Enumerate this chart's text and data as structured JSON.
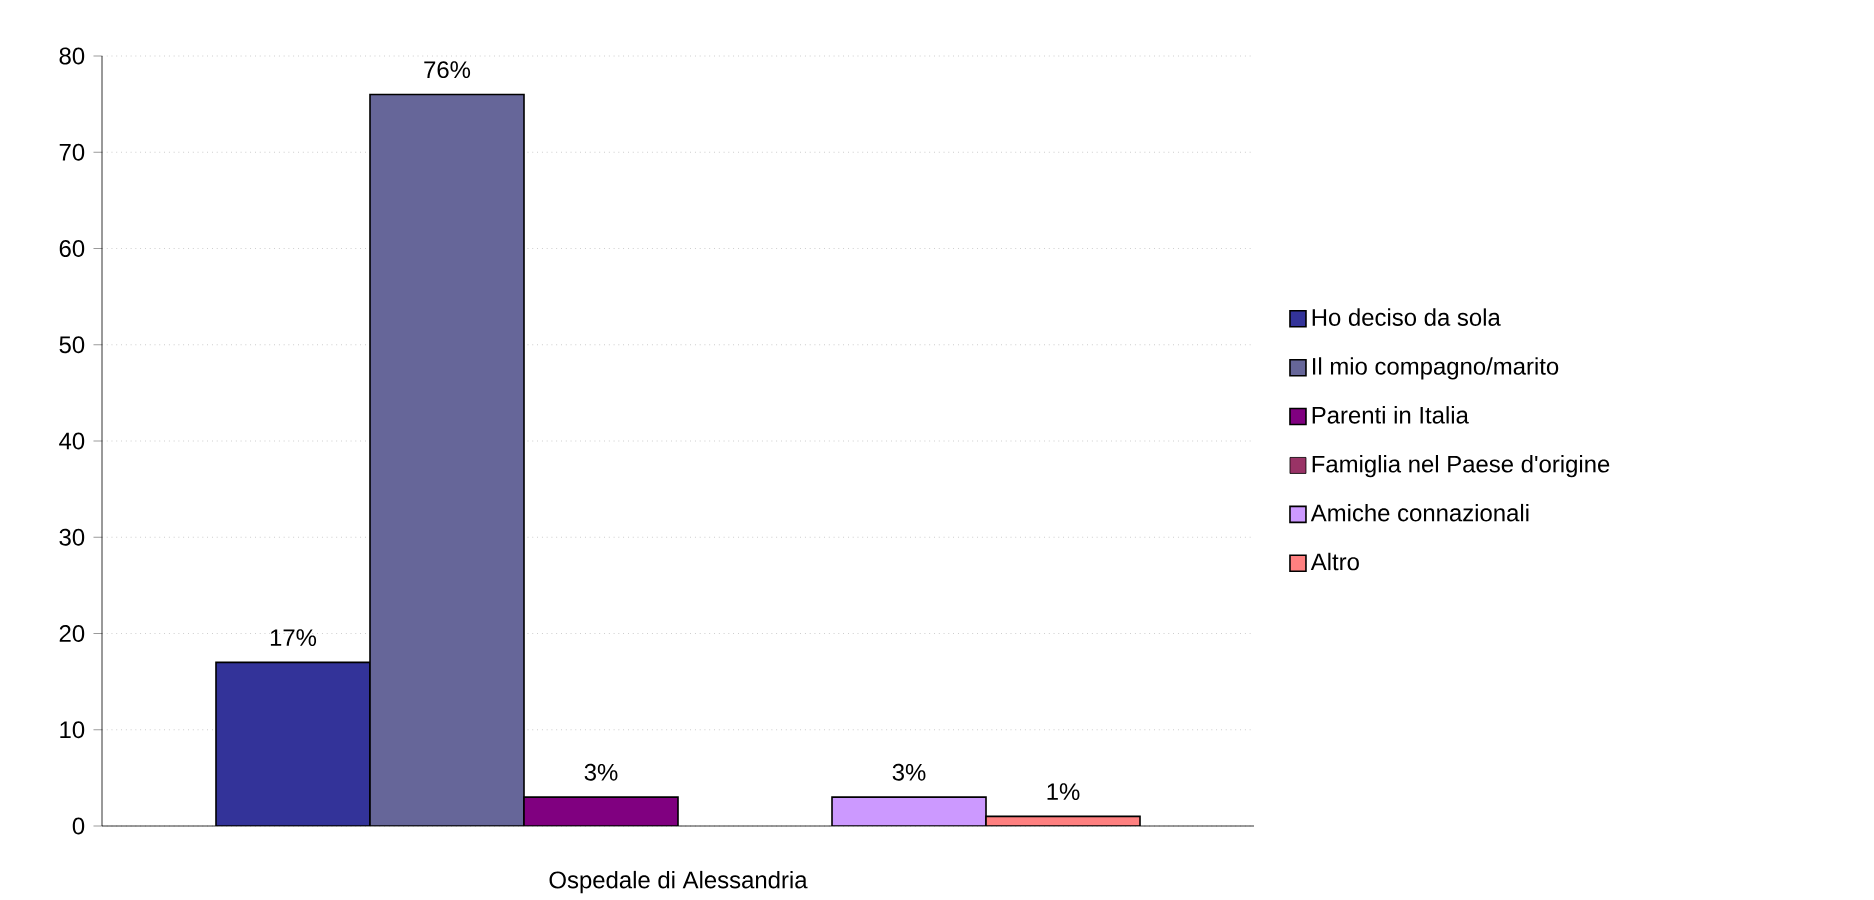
{
  "chart_data": {
    "type": "bar",
    "categories": [
      "Ospedale di Alessandria"
    ],
    "series": [
      {
        "name": "Ho deciso da sola",
        "color": "#333399",
        "values": [
          17
        ],
        "value_labels": [
          "17%"
        ]
      },
      {
        "name": "Il mio compagno/marito",
        "color": "#666699",
        "values": [
          76
        ],
        "value_labels": [
          "76%"
        ]
      },
      {
        "name": "Parenti in Italia",
        "color": "#800080",
        "values": [
          3
        ],
        "value_labels": [
          "3%"
        ]
      },
      {
        "name": "Famiglia nel Paese d'origine",
        "color": "#993366",
        "values": [
          null
        ],
        "value_labels": [
          null
        ]
      },
      {
        "name": "Amiche connazionali",
        "color": "#cc99ff",
        "values": [
          3
        ],
        "value_labels": [
          "3%"
        ]
      },
      {
        "name": "Altro",
        "color": "#ff8080",
        "values": [
          1
        ],
        "value_labels": [
          "1%"
        ]
      }
    ],
    "ylim": [
      0,
      80
    ],
    "yticks": [
      0,
      10,
      20,
      30,
      40,
      50,
      60,
      70,
      80
    ],
    "grid": "y",
    "legend": "right"
  }
}
